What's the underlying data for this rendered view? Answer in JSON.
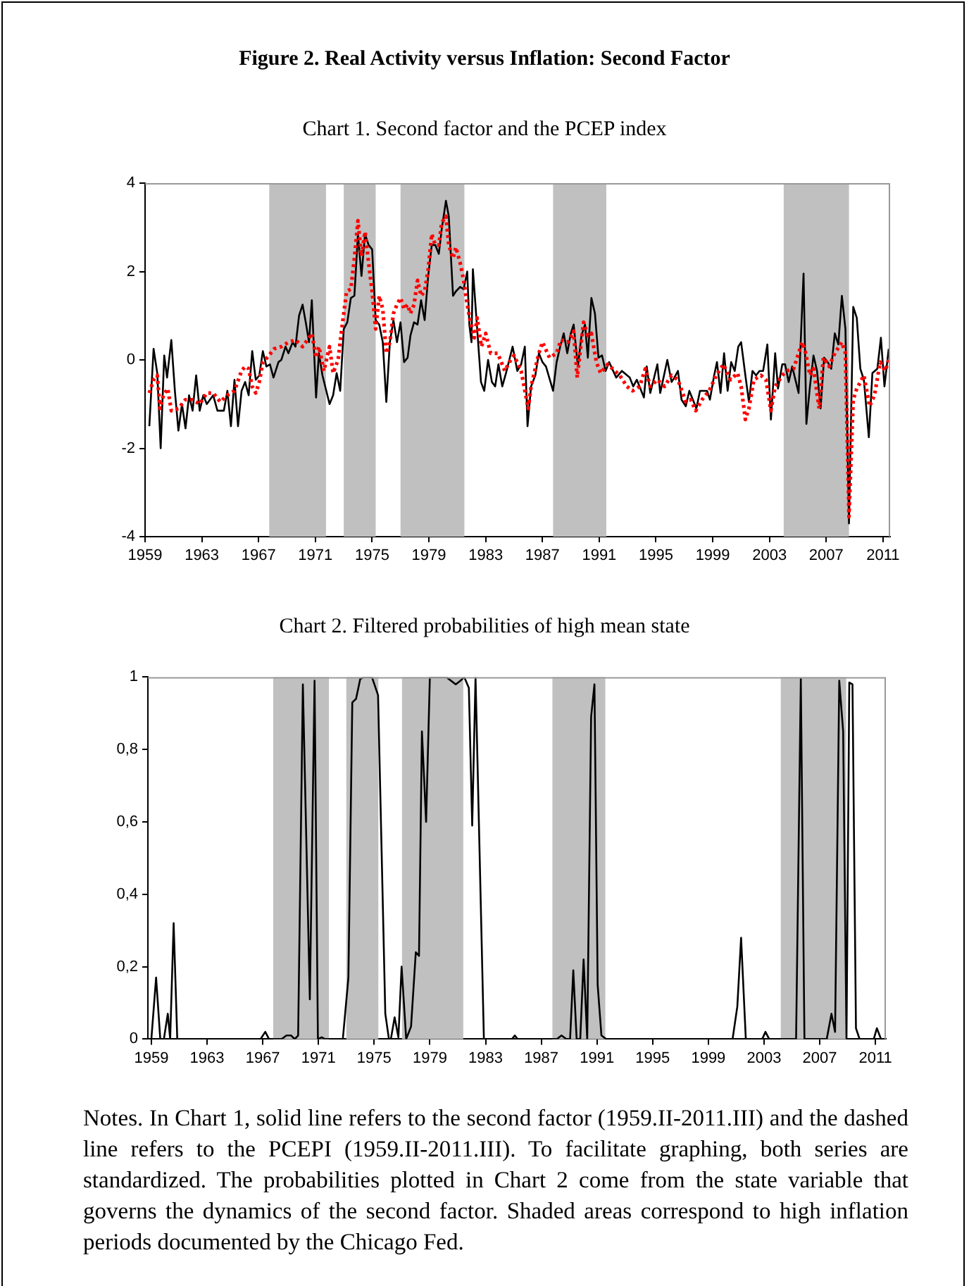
{
  "chart_data": [
    {
      "type": "line",
      "title": "Figure 2. Real Activity versus Inflation: Second Factor",
      "subtitle": "Chart 1. Second factor and the PCEP index",
      "xlim": [
        1959,
        2011.5
      ],
      "xticks": [
        1959,
        1963,
        1967,
        1971,
        1975,
        1979,
        1983,
        1987,
        1991,
        1995,
        1999,
        2003,
        2007,
        2011
      ],
      "ylim": [
        -4,
        4
      ],
      "yticks": [
        -4,
        -2,
        0,
        2,
        4
      ],
      "bands": [
        {
          "axis": "x",
          "from": 1967.75,
          "to": 1971.75,
          "color": "#c0c0c0"
        },
        {
          "axis": "x",
          "from": 1973,
          "to": 1975.25,
          "color": "#c0c0c0"
        },
        {
          "axis": "x",
          "from": 1977,
          "to": 1981.5,
          "color": "#c0c0c0"
        },
        {
          "axis": "x",
          "from": 1987.75,
          "to": 1991.5,
          "color": "#c0c0c0"
        },
        {
          "axis": "x",
          "from": 2004,
          "to": 2008.6,
          "color": "#c0c0c0"
        }
      ],
      "series": [
        {
          "color": "#000000",
          "line_style": "solid",
          "x": [
            1959.3,
            1959.6,
            1959.86,
            1960.1,
            1960.35,
            1960.55,
            1960.85,
            1961.1,
            1961.35,
            1961.6,
            1961.85,
            1962.1,
            1962.35,
            1962.6,
            1962.85,
            1963.1,
            1963.35,
            1963.8,
            1964.1,
            1964.55,
            1964.8,
            1965.05,
            1965.3,
            1965.55,
            1965.8,
            1966.05,
            1966.3,
            1966.55,
            1966.8,
            1967.05,
            1967.3,
            1967.55,
            1967.8,
            1968.05,
            1968.4,
            1968.6,
            1968.9,
            1969.1,
            1969.4,
            1969.6,
            1969.85,
            1970.1,
            1970.35,
            1970.55,
            1970.75,
            1971.05,
            1971.25,
            1971.5,
            1972.0,
            1972.25,
            1972.5,
            1972.75,
            1973.0,
            1973.25,
            1973.5,
            1973.75,
            1974.0,
            1974.25,
            1974.5,
            1974.75,
            1975.0,
            1975.25,
            1975.5,
            1975.75,
            1976.0,
            1976.25,
            1976.5,
            1976.75,
            1977.0,
            1977.25,
            1977.5,
            1977.7,
            1977.95,
            1978.2,
            1978.45,
            1978.7,
            1978.95,
            1979.2,
            1979.45,
            1979.7,
            1979.9,
            1980.2,
            1980.4,
            1980.7,
            1980.9,
            1981.2,
            1981.45,
            1981.7,
            1981.85,
            1982.0,
            1982.1,
            1982.67,
            1982.9,
            1983.17,
            1983.44,
            1983.67,
            1983.9,
            1984.17,
            1984.43,
            1984.9,
            1985.23,
            1985.5,
            1985.76,
            1985.95,
            1986.2,
            1986.5,
            1986.75,
            1987.0,
            1987.25,
            1987.75,
            1988.0,
            1988.25,
            1988.5,
            1988.75,
            1989.0,
            1989.2,
            1989.5,
            1989.75,
            1990.0,
            1990.2,
            1990.45,
            1990.7,
            1990.95,
            1991.2,
            1991.45,
            1991.7,
            1992.2,
            1992.6,
            1993.15,
            1993.4,
            1993.65,
            1994.15,
            1994.35,
            1994.6,
            1995.1,
            1995.3,
            1995.8,
            1996.1,
            1996.3,
            1996.55,
            1996.8,
            1997.1,
            1997.35,
            1997.6,
            1997.85,
            1998.1,
            1998.6,
            1998.8,
            1999.1,
            1999.3,
            1999.55,
            1999.8,
            2000.05,
            2000.3,
            2000.55,
            2000.8,
            2001.0,
            2001.3,
            2001.55,
            2001.8,
            2002.05,
            2002.3,
            2002.55,
            2002.85,
            2003.1,
            2003.4,
            2003.6,
            2003.9,
            2004.1,
            2004.35,
            2004.6,
            2005.05,
            2005.4,
            2005.6,
            2005.85,
            2006.1,
            2006.35,
            2006.6,
            2006.85,
            2007.1,
            2007.35,
            2007.6,
            2007.85,
            2008.1,
            2008.35,
            2008.6,
            2008.9,
            2009.15,
            2009.4,
            2009.65,
            2010.0,
            2010.25,
            2010.6,
            2010.85,
            2011.1,
            2011.4
          ],
          "values": [
            -1.5,
            0.25,
            -0.3,
            -2.0,
            0.1,
            -0.4,
            0.45,
            -0.7,
            -1.6,
            -1.0,
            -1.55,
            -0.8,
            -1.15,
            -0.35,
            -1.15,
            -0.8,
            -1.0,
            -0.8,
            -1.15,
            -1.15,
            -0.7,
            -1.5,
            -0.45,
            -1.5,
            -0.7,
            -0.5,
            -0.8,
            0.2,
            -0.45,
            -0.35,
            0.2,
            -0.15,
            -0.1,
            -0.4,
            -0.05,
            0.0,
            0.3,
            0.15,
            0.4,
            0.3,
            1.0,
            1.25,
            0.8,
            0.4,
            1.35,
            -0.85,
            0.15,
            -0.35,
            -1.0,
            -0.8,
            -0.3,
            -0.7,
            0.7,
            0.85,
            1.4,
            1.45,
            2.85,
            1.9,
            2.85,
            2.6,
            2.5,
            0.9,
            0.8,
            0.4,
            -0.95,
            0.4,
            0.9,
            0.4,
            0.85,
            -0.05,
            0.05,
            0.55,
            0.85,
            0.8,
            1.35,
            0.9,
            1.9,
            2.6,
            2.6,
            2.4,
            2.95,
            3.6,
            3.25,
            1.45,
            1.55,
            1.65,
            1.6,
            2.0,
            0.8,
            0.4,
            2.05,
            -0.5,
            -0.7,
            0.0,
            -0.5,
            -0.6,
            -0.1,
            -0.6,
            -0.3,
            0.3,
            -0.25,
            -0.1,
            0.3,
            -1.5,
            -0.6,
            -0.35,
            0.15,
            -0.05,
            -0.15,
            -0.7,
            -0.05,
            0.3,
            0.6,
            0.15,
            0.6,
            0.8,
            -0.15,
            0.55,
            0.8,
            0.05,
            1.4,
            1.05,
            0.05,
            0.1,
            -0.25,
            -0.05,
            -0.4,
            -0.25,
            -0.4,
            -0.6,
            -0.45,
            -0.85,
            -0.15,
            -0.75,
            -0.1,
            -0.75,
            0.0,
            -0.5,
            -0.4,
            -0.25,
            -0.9,
            -1.05,
            -0.7,
            -0.9,
            -1.1,
            -0.7,
            -0.7,
            -0.9,
            -0.35,
            -0.05,
            -0.75,
            0.15,
            -0.7,
            -0.05,
            -0.25,
            0.3,
            0.4,
            -0.35,
            -0.95,
            -0.25,
            -0.35,
            -0.25,
            -0.25,
            0.35,
            -1.35,
            0.15,
            -0.65,
            -0.1,
            -0.1,
            -0.5,
            -0.15,
            -0.75,
            1.95,
            -1.45,
            -0.6,
            0.1,
            -0.25,
            -1.1,
            0.05,
            -0.05,
            -0.2,
            0.6,
            0.35,
            1.45,
            0.7,
            -3.7,
            1.2,
            0.95,
            -0.2,
            -0.45,
            -1.75,
            -0.3,
            -0.2,
            0.5,
            -0.6,
            0.25
          ]
        },
        {
          "color": "#ff0000",
          "line_style": "dotted",
          "x": [
            1959.3,
            1959.6,
            1959.86,
            1960.05,
            1960.3,
            1960.6,
            1960.85,
            1961.35,
            1961.85,
            1962.35,
            1962.85,
            1963.35,
            1963.8,
            1964.3,
            1964.8,
            1965.3,
            1965.8,
            1966.05,
            1966.3,
            1966.55,
            1966.8,
            1967.05,
            1967.3,
            1967.6,
            1968.1,
            1968.6,
            1969.1,
            1969.6,
            1970.1,
            1970.55,
            1970.75,
            1971.05,
            1971.25,
            1971.6,
            1972.0,
            1972.25,
            1972.6,
            1972.9,
            1973.2,
            1973.5,
            1973.75,
            1974.0,
            1974.25,
            1974.5,
            1974.75,
            1975.0,
            1975.25,
            1975.5,
            1975.75,
            1976.0,
            1976.25,
            1976.5,
            1976.75,
            1977.0,
            1977.25,
            1977.5,
            1977.7,
            1977.95,
            1978.2,
            1978.45,
            1978.7,
            1978.95,
            1979.2,
            1979.45,
            1979.7,
            1979.9,
            1980.2,
            1980.4,
            1980.7,
            1980.9,
            1981.2,
            1981.45,
            1981.7,
            1981.9,
            1982.2,
            1982.4,
            1982.7,
            1983.0,
            1983.35,
            1983.85,
            1984.35,
            1984.85,
            1985.0,
            1985.5,
            1986.0,
            1986.2,
            1986.75,
            1987.0,
            1987.5,
            1988.0,
            1988.3,
            1988.8,
            1989.2,
            1989.45,
            1989.7,
            1989.9,
            1990.2,
            1990.45,
            1990.8,
            1991.1,
            1991.6,
            1992.45,
            1992.95,
            1993.35,
            1993.85,
            1994.25,
            1994.6,
            1995.1,
            1995.6,
            1996.1,
            1996.55,
            1997.1,
            1997.45,
            1997.8,
            1998.25,
            1998.75,
            1999.25,
            1999.75,
            2000.25,
            2000.75,
            2001.0,
            2001.3,
            2001.55,
            2001.9,
            2002.4,
            2002.75,
            2003.1,
            2003.4,
            2003.9,
            2004.2,
            2004.7,
            2005.3,
            2005.55,
            2005.85,
            2006.1,
            2006.5,
            2006.8,
            2007.2,
            2007.6,
            2008.1,
            2008.35,
            2008.6,
            2008.9,
            2009.15,
            2009.65,
            2010.05,
            2010.4,
            2010.8,
            2011.15,
            2011.4
          ],
          "values": [
            -0.75,
            -0.45,
            -0.35,
            -1.1,
            -0.8,
            -0.65,
            -1.15,
            -1.1,
            -0.9,
            -0.9,
            -1.0,
            -0.75,
            -0.75,
            -0.95,
            -0.8,
            -0.7,
            -0.25,
            -0.15,
            -0.2,
            -0.6,
            -0.75,
            -0.5,
            -0.05,
            0.05,
            0.25,
            0.3,
            0.4,
            0.45,
            0.3,
            0.5,
            0.6,
            0.05,
            0.3,
            -0.25,
            0.3,
            -0.3,
            0.0,
            0.8,
            1.55,
            1.6,
            2.3,
            3.15,
            2.35,
            2.9,
            2.2,
            1.55,
            0.7,
            1.45,
            1.15,
            0.15,
            0.4,
            1.05,
            1.25,
            1.4,
            1.15,
            1.25,
            1.05,
            1.25,
            1.8,
            1.45,
            1.55,
            2.05,
            2.85,
            2.6,
            2.6,
            3.1,
            3.25,
            2.6,
            2.3,
            2.55,
            2.2,
            1.8,
            1.25,
            0.9,
            0.5,
            0.95,
            0.3,
            0.6,
            0.15,
            0.15,
            -0.25,
            0.05,
            0.1,
            -0.25,
            -1.1,
            -0.6,
            0.15,
            0.4,
            0.05,
            0.15,
            0.45,
            0.4,
            0.65,
            -0.4,
            0.3,
            0.85,
            0.55,
            0.6,
            -0.05,
            -0.3,
            -0.1,
            -0.35,
            -0.6,
            -0.7,
            -0.6,
            -0.2,
            -0.6,
            -0.45,
            -0.6,
            -0.35,
            -0.45,
            -0.95,
            -0.9,
            -1.15,
            -0.9,
            -0.7,
            -0.35,
            -0.1,
            -0.45,
            -0.3,
            -0.6,
            -1.35,
            -1.1,
            -0.45,
            -0.35,
            -0.45,
            -1.15,
            -0.6,
            -0.35,
            -0.25,
            -0.2,
            0.4,
            0.15,
            -0.35,
            -0.2,
            -1.1,
            0.05,
            -0.15,
            0.15,
            0.4,
            0.15,
            -3.55,
            -0.9,
            -0.65,
            -0.35,
            -1.05,
            -0.8,
            -0.05,
            -0.25,
            0.0
          ]
        }
      ]
    },
    {
      "type": "line",
      "title": "Chart 2. Filtered probabilities of high mean state",
      "xlim": [
        1958.75,
        2011.75
      ],
      "xticks": [
        1959,
        1963,
        1967,
        1971,
        1975,
        1979,
        1983,
        1987,
        1991,
        1995,
        1999,
        2003,
        2007,
        2011
      ],
      "ylim": [
        0,
        1
      ],
      "yticks": [
        0,
        {
          "value": 0.2,
          "label": "0,2"
        },
        {
          "value": 0.4,
          "label": "0,4"
        },
        {
          "value": 0.6,
          "label": "0,6"
        },
        {
          "value": 0.8,
          "label": "0,8"
        },
        1
      ],
      "bands": [
        {
          "axis": "x",
          "from": 1967.75,
          "to": 1971.75,
          "color": "#c0c0c0"
        },
        {
          "axis": "x",
          "from": 1973,
          "to": 1975.3,
          "color": "#c0c0c0"
        },
        {
          "axis": "x",
          "from": 1977,
          "to": 1981.4,
          "color": "#c0c0c0"
        },
        {
          "axis": "x",
          "from": 1987.8,
          "to": 1991.6,
          "color": "#c0c0c0"
        },
        {
          "axis": "x",
          "from": 2004.2,
          "to": 2008.9,
          "color": "#c0c0c0"
        }
      ],
      "annotations": [
        "Notes. In Chart 1, solid line refers to the second factor (1959.II-2011.III) and the dashed line refers to the PCEPI (1959.II-2011.III). To facilitate graphing, both series are standardized. The probabilities plotted in Chart 2 come from the state variable that governs the dynamics of the second factor. Shaded areas correspond to high inflation periods documented by the Chicago Fed."
      ],
      "series": [
        {
          "color": "#000000",
          "line_style": "solid",
          "x": [
            1959,
            1959.34,
            1959.64,
            1959.9,
            1960.18,
            1960.35,
            1960.6,
            1960.86,
            1966.84,
            1967.18,
            1967.45,
            1968.36,
            1968.7,
            1969.03,
            1969.3,
            1969.54,
            1969.88,
            1970.38,
            1970.72,
            1970.96,
            1971.23,
            1971.47,
            1972.75,
            1973.15,
            1973.43,
            1973.7,
            1974.0,
            1974.27,
            1974.84,
            1975.28,
            1975.8,
            1976.06,
            1976.2,
            1976.47,
            1976.74,
            1976.97,
            1977.3,
            1977.65,
            1977.99,
            1978.22,
            1978.43,
            1978.73,
            1979.0,
            1980.18,
            1980.86,
            1981.2,
            1981.47,
            1981.8,
            1982.04,
            1982.28,
            1982.88,
            1984.9,
            1985.1,
            1985.3,
            1988.12,
            1988.45,
            1988.8,
            1989.07,
            1989.3,
            1989.54,
            1989.8,
            1990.04,
            1990.3,
            1990.58,
            1990.82,
            1991.05,
            1991.32,
            1991.66,
            2000.74,
            2001.08,
            2001.35,
            2001.69,
            2002.87,
            2003.1,
            2003.37,
            2005.3,
            2005.64,
            2005.9,
            2007.5,
            2007.84,
            2008.1,
            2008.4,
            2008.68,
            2008.92,
            2009.12,
            2009.35,
            2009.6,
            2009.86,
            2010.88,
            2011.1,
            2011.4,
            2011.7
          ],
          "values": [
            0,
            0.17,
            0,
            0,
            0.07,
            0,
            0.32,
            0,
            0,
            0.02,
            0,
            0,
            0.01,
            0.01,
            0,
            0.01,
            0.98,
            0.11,
            0.99,
            0,
            0.005,
            0,
            0,
            0.17,
            0.93,
            0.94,
            0.995,
            1,
            1,
            0.95,
            0.07,
            0,
            0,
            0.06,
            0.005,
            0.2,
            0,
            0.035,
            0.24,
            0.23,
            0.85,
            0.6,
            1,
            1,
            0.98,
            0.99,
            1,
            0.97,
            0.59,
            1,
            0,
            0,
            0.01,
            0,
            0,
            0.01,
            0,
            0,
            0.19,
            0,
            0,
            0.22,
            0,
            0.89,
            0.98,
            0.15,
            0.01,
            0,
            0,
            0.09,
            0.28,
            0,
            0,
            0.02,
            0,
            0,
            0.995,
            0,
            0,
            0.07,
            0.02,
            0.99,
            0.85,
            0,
            0.985,
            0.98,
            0.03,
            0,
            0,
            0.03,
            0,
            0
          ]
        }
      ]
    }
  ]
}
